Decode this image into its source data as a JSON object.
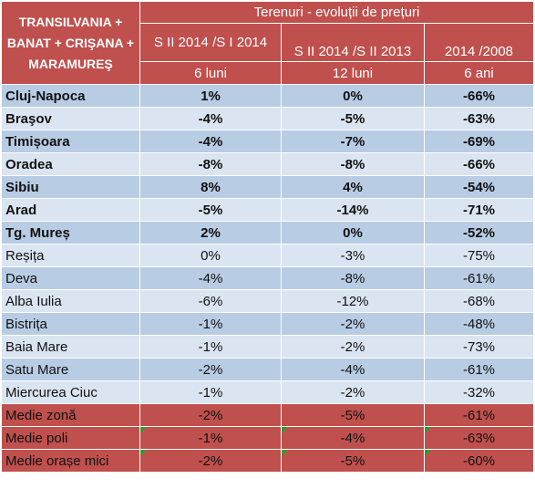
{
  "header": {
    "corner": "TRANSILVANIA + BANAT + CRIŞANA + MARAMUREŞ",
    "group": "Terenuri - evoluții de prețuri",
    "col1": "S II 2014 /S I 2014",
    "col2": "S II 2014 /S II 2013",
    "col3": "2014 /2008",
    "unit1": "6 luni",
    "unit2": "12 luni",
    "unit3": "6 ani"
  },
  "rows": [
    {
      "city": "Cluj-Napoca",
      "v1": "1%",
      "v2": "0%",
      "v3": "-66%"
    },
    {
      "city": "Braşov",
      "v1": "-4%",
      "v2": "-5%",
      "v3": "-63%"
    },
    {
      "city": "Timișoara",
      "v1": "-4%",
      "v2": "-7%",
      "v3": "-69%"
    },
    {
      "city": "Oradea",
      "v1": "-8%",
      "v2": "-8%",
      "v3": "-66%"
    },
    {
      "city": "Sibiu",
      "v1": "8%",
      "v2": "4%",
      "v3": "-54%"
    },
    {
      "city": "Arad",
      "v1": "-5%",
      "v2": "-14%",
      "v3": "-71%"
    },
    {
      "city": "Tg. Mureș",
      "v1": "2%",
      "v2": "0%",
      "v3": "-52%"
    },
    {
      "city": "Reșița",
      "v1": "0%",
      "v2": "-3%",
      "v3": "-75%"
    },
    {
      "city": "Deva",
      "v1": "-4%",
      "v2": "-8%",
      "v3": "-61%"
    },
    {
      "city": "Alba Iulia",
      "v1": "-6%",
      "v2": "-12%",
      "v3": "-68%"
    },
    {
      "city": "Bistrița",
      "v1": "-1%",
      "v2": "-2%",
      "v3": "-48%"
    },
    {
      "city": "Baia Mare",
      "v1": "-1%",
      "v2": "-2%",
      "v3": "-73%"
    },
    {
      "city": "Satu Mare",
      "v1": "-2%",
      "v2": "-4%",
      "v3": "-61%"
    },
    {
      "city": "Miercurea Ciuc",
      "v1": "-1%",
      "v2": "-2%",
      "v3": "-32%"
    },
    {
      "city": "Medie zonă",
      "v1": "-2%",
      "v2": "-5%",
      "v3": "-61%"
    },
    {
      "city": "Medie poli",
      "v1": "-1%",
      "v2": "-4%",
      "v3": "-63%"
    },
    {
      "city": "Medie orașe mici",
      "v1": "-2%",
      "v2": "-5%",
      "v3": "-60%"
    }
  ],
  "colors": {
    "header_red": "#c0504d",
    "row_blue_dark": "#b8cce4",
    "row_blue_light": "#dbe5f1",
    "marker_green": "#2e9e2e"
  }
}
